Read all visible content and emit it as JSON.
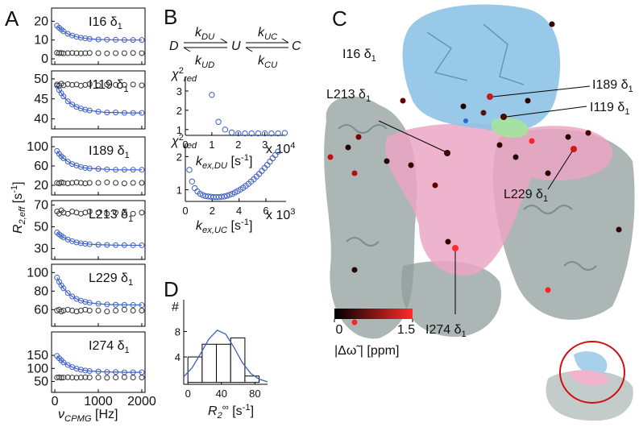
{
  "panel_labels": [
    "A",
    "B",
    "C",
    "D"
  ],
  "panel_a": {
    "ylabel": [
      {
        "t": "R",
        "italic": true
      },
      {
        "t": "2,eff",
        "pos": "sub",
        "italic": true
      },
      {
        "t": " [s"
      },
      {
        "t": "-1",
        "pos": "sup"
      },
      {
        "t": "]"
      }
    ],
    "xlabel": [
      {
        "t": "ν",
        "italic": true
      },
      {
        "t": "CPMG",
        "pos": "sub",
        "italic": true
      },
      {
        "t": " [Hz]"
      }
    ],
    "xticks": [
      0,
      1000,
      2000
    ]
  },
  "scheme": {
    "states": [
      "D",
      "U",
      "C"
    ],
    "rates": [
      [
        {
          "t": "k",
          "italic": true
        },
        {
          "t": "DU",
          "pos": "sub",
          "italic": true
        }
      ],
      [
        {
          "t": "k",
          "italic": true
        },
        {
          "t": "UD",
          "pos": "sub",
          "italic": true
        }
      ],
      [
        {
          "t": "k",
          "italic": true
        },
        {
          "t": "UC",
          "pos": "sub",
          "italic": true
        }
      ],
      [
        {
          "t": "k",
          "italic": true
        },
        {
          "t": "CU",
          "pos": "sub",
          "italic": true
        }
      ]
    ]
  },
  "chart_data": [
    {
      "type": "scatter",
      "label": [
        {
          "t": "I16 δ"
        },
        {
          "t": "1",
          "pos": "sub"
        }
      ],
      "xlim": [
        -75,
        2075
      ],
      "ylim": [
        -3,
        27
      ],
      "yticks": [
        0,
        10,
        20
      ],
      "x": [
        50,
        100,
        150,
        200,
        300,
        400,
        500,
        600,
        700,
        800,
        1000,
        1200,
        1400,
        1600,
        1800,
        2000
      ],
      "series": [
        {
          "color": "#3d5fc4",
          "line": true,
          "values": [
            17.6,
            16.5,
            15.5,
            14.6,
            13.3,
            12.4,
            11.7,
            11.2,
            10.9,
            10.6,
            10.3,
            10.2,
            10.1,
            10.0,
            10.0,
            10.0
          ]
        },
        {
          "color": "#333333",
          "values": [
            3.2,
            3.0,
            3.1,
            2.9,
            3.0,
            3.1,
            3.0,
            2.9,
            3.0,
            3.1,
            3.0,
            2.9,
            3.0,
            3.0,
            3.1,
            3.0
          ]
        }
      ]
    },
    {
      "type": "scatter",
      "label": [
        {
          "t": "I119 δ"
        },
        {
          "t": "1",
          "pos": "sub"
        }
      ],
      "xlim": [
        -75,
        2075
      ],
      "ylim": [
        37.5,
        52
      ],
      "yticks": [
        40,
        45,
        50
      ],
      "x": [
        50,
        100,
        150,
        200,
        300,
        400,
        500,
        600,
        700,
        800,
        1000,
        1200,
        1400,
        1600,
        1800,
        2000
      ],
      "series": [
        {
          "color": "#3d5fc4",
          "line": true,
          "values": [
            48.3,
            47.2,
            46.4,
            45.6,
            44.4,
            43.6,
            43.0,
            42.6,
            42.3,
            42.1,
            41.8,
            41.6,
            41.6,
            41.5,
            41.5,
            41.5
          ]
        },
        {
          "color": "#333333",
          "values": [
            48.6,
            48.3,
            48.8,
            48.4,
            48.7,
            48.5,
            48.6,
            48.3,
            48.5,
            48.7,
            48.4,
            48.6,
            48.5,
            48.5,
            48.6,
            48.4
          ]
        }
      ]
    },
    {
      "type": "scatter",
      "label": [
        {
          "t": "I189 δ"
        },
        {
          "t": "1",
          "pos": "sub"
        }
      ],
      "xlim": [
        -75,
        2075
      ],
      "ylim": [
        0,
        120
      ],
      "yticks": [
        20,
        60,
        100
      ],
      "x": [
        50,
        100,
        150,
        200,
        300,
        400,
        500,
        600,
        700,
        800,
        1000,
        1200,
        1400,
        1600,
        1800,
        2000
      ],
      "series": [
        {
          "color": "#3d5fc4",
          "line": true,
          "values": [
            91,
            85,
            80,
            76,
            69,
            64,
            61,
            58,
            56,
            55,
            54,
            53,
            52,
            52,
            52,
            52
          ]
        },
        {
          "color": "#333333",
          "values": [
            25,
            24,
            26,
            25,
            24,
            25,
            26,
            25,
            24,
            25,
            25,
            26,
            25,
            24,
            25,
            25
          ]
        }
      ]
    },
    {
      "type": "scatter",
      "label": [
        {
          "t": "L213 δ"
        },
        {
          "t": "1",
          "pos": "sub"
        }
      ],
      "xlim": [
        -75,
        2075
      ],
      "ylim": [
        20,
        74
      ],
      "yticks": [
        30,
        50,
        70
      ],
      "x": [
        50,
        100,
        150,
        200,
        300,
        400,
        500,
        600,
        700,
        800,
        1000,
        1200,
        1400,
        1600,
        1800,
        2000
      ],
      "series": [
        {
          "color": "#3d5fc4",
          "line": true,
          "values": [
            44.8,
            43,
            41.5,
            40.2,
            38.2,
            36.7,
            35.6,
            34.9,
            34.4,
            34,
            33.5,
            33.3,
            33.1,
            33.1,
            33,
            33
          ]
        },
        {
          "color": "#333333",
          "values": [
            64,
            62,
            65,
            63,
            62,
            64,
            63,
            62,
            63,
            64,
            63,
            62,
            63,
            63,
            62,
            63
          ]
        }
      ]
    },
    {
      "type": "scatter",
      "label": [
        {
          "t": "L229 δ"
        },
        {
          "t": "1",
          "pos": "sub"
        }
      ],
      "xlim": [
        -75,
        2075
      ],
      "ylim": [
        42,
        109
      ],
      "yticks": [
        60,
        80,
        100
      ],
      "x": [
        50,
        100,
        150,
        200,
        300,
        400,
        500,
        600,
        700,
        800,
        1000,
        1200,
        1400,
        1600,
        1800,
        2000
      ],
      "series": [
        {
          "color": "#3d5fc4",
          "line": true,
          "values": [
            94.6,
            90.1,
            86.2,
            83,
            77.9,
            74.2,
            71.6,
            69.7,
            68.4,
            67.4,
            66.3,
            65.6,
            65.3,
            65.2,
            65.1,
            65
          ]
        },
        {
          "color": "#333333",
          "values": [
            59,
            60,
            58,
            59,
            60,
            59,
            58,
            59,
            60,
            59,
            59,
            58,
            59,
            60,
            59,
            59
          ]
        }
      ]
    },
    {
      "type": "scatter",
      "label": [
        {
          "t": "I274 δ"
        },
        {
          "t": "1",
          "pos": "sub"
        }
      ],
      "xlim": [
        -75,
        2075
      ],
      "ylim": [
        8,
        240
      ],
      "yticks": [
        50,
        100,
        150
      ],
      "x": [
        50,
        100,
        150,
        200,
        300,
        400,
        500,
        600,
        700,
        800,
        1000,
        1200,
        1400,
        1600,
        1800,
        2000
      ],
      "series": [
        {
          "color": "#3d5fc4",
          "line": true,
          "values": [
            148,
            139,
            131,
            123,
            113,
            105,
            99,
            95,
            92,
            90,
            88,
            86,
            86,
            85,
            85,
            85
          ]
        },
        {
          "color": "#333333",
          "values": [
            65,
            66,
            64,
            65,
            66,
            65,
            64,
            65,
            66,
            65,
            65,
            64,
            65,
            66,
            65,
            65
          ]
        }
      ]
    },
    {
      "type": "scatter",
      "ylabel": [
        {
          "t": "χ",
          "italic": true
        },
        {
          "t": "2",
          "pos": "sup"
        },
        {
          "t": "red",
          "pos": "sub",
          "italic": true
        }
      ],
      "xlabel": [
        {
          "t": "k",
          "italic": true
        },
        {
          "t": "ex,DU",
          "pos": "sub",
          "italic": true
        },
        {
          "t": " [s"
        },
        {
          "t": "-1",
          "pos": "sup"
        },
        {
          "t": "]"
        }
      ],
      "xmult": [
        {
          "t": "x 10"
        },
        {
          "t": "4",
          "pos": "sup"
        }
      ],
      "xlim": [
        0,
        3.8
      ],
      "ylim": [
        0.7,
        3.75
      ],
      "xticks": [
        0,
        1,
        2,
        3
      ],
      "yticks": [
        1,
        2,
        3
      ],
      "x": [
        1.0,
        1.25,
        1.5,
        1.75,
        2.0,
        2.25,
        2.5,
        2.75,
        3.0,
        3.25,
        3.5,
        3.75
      ],
      "series": [
        {
          "color": "#3d5fc4",
          "values": [
            2.8,
            1.4,
            1.0,
            0.85,
            0.8,
            0.8,
            0.8,
            0.8,
            0.8,
            0.8,
            0.8,
            0.82
          ]
        }
      ]
    },
    {
      "type": "scatter",
      "ylabel": [
        {
          "t": "χ",
          "italic": true
        },
        {
          "t": "2",
          "pos": "sup"
        },
        {
          "t": "red",
          "pos": "sub",
          "italic": true
        }
      ],
      "xlabel": [
        {
          "t": "k",
          "italic": true
        },
        {
          "t": "ex,UC",
          "pos": "sub",
          "italic": true
        },
        {
          "t": " [s"
        },
        {
          "t": "-1",
          "pos": "sup"
        },
        {
          "t": "]"
        }
      ],
      "xmult": [
        {
          "t": "x 10"
        },
        {
          "t": "3",
          "pos": "sup"
        }
      ],
      "xlim": [
        0,
        7.5
      ],
      "ylim": [
        0.65,
        2.35
      ],
      "xticks": [
        0,
        2,
        4,
        6
      ],
      "yticks": [
        1,
        2
      ],
      "x": [
        0.3,
        0.5,
        0.7,
        0.9,
        1.1,
        1.3,
        1.5,
        1.7,
        1.9,
        2.1,
        2.3,
        2.5,
        2.7,
        2.9,
        3.1,
        3.3,
        3.5,
        3.7,
        3.9,
        4.1,
        4.3,
        4.5,
        4.7,
        4.9,
        5.1,
        5.3,
        5.5,
        5.7,
        5.9,
        6.1,
        6.3,
        6.5,
        6.7,
        6.9
      ],
      "series": [
        {
          "color": "#3d5fc4",
          "values": [
            1.6,
            1.25,
            1.05,
            0.95,
            0.88,
            0.84,
            0.81,
            0.8,
            0.79,
            0.78,
            0.78,
            0.78,
            0.79,
            0.8,
            0.82,
            0.85,
            0.88,
            0.92,
            0.96,
            1.01,
            1.06,
            1.12,
            1.18,
            1.25,
            1.32,
            1.4,
            1.48,
            1.57,
            1.66,
            1.75,
            1.85,
            1.95,
            2.05,
            2.15
          ]
        }
      ]
    },
    {
      "type": "histogram",
      "ylabel": [
        {
          "t": "#"
        }
      ],
      "xlabel": [
        {
          "t": "R",
          "italic": true
        },
        {
          "t": "2",
          "pos": "sub",
          "italic": true
        },
        {
          "t": "∞",
          "pos": "sup"
        },
        {
          "t": " [s"
        },
        {
          "t": "-1",
          "pos": "sup"
        },
        {
          "t": "]"
        }
      ],
      "xlim": [
        -5,
        95
      ],
      "ylim": [
        -0.3,
        13
      ],
      "xticks": [
        0,
        40,
        80
      ],
      "yticks": [
        4,
        8
      ],
      "bins": [
        0,
        17,
        34,
        51,
        68,
        85
      ],
      "counts": [
        4,
        6,
        6,
        7,
        1
      ],
      "color": "#ffffff",
      "fit": {
        "color": "#3d5fc4",
        "x": [
          -5,
          5,
          15,
          25,
          35,
          45,
          55,
          65,
          75,
          85,
          95
        ],
        "values": [
          0.9,
          2.3,
          4.5,
          6.8,
          8.2,
          7.6,
          5.5,
          3.1,
          1.4,
          0.5,
          0.1
        ]
      }
    }
  ],
  "structure": {
    "labels": [
      [
        {
          "t": "I16 δ"
        },
        {
          "t": "1",
          "pos": "sub"
        }
      ],
      [
        {
          "t": "I189 δ"
        },
        {
          "t": "1",
          "pos": "sub"
        }
      ],
      [
        {
          "t": "L213 δ"
        },
        {
          "t": "1",
          "pos": "sub"
        }
      ],
      [
        {
          "t": "I119 δ"
        },
        {
          "t": "1",
          "pos": "sub"
        }
      ],
      [
        {
          "t": "L229 δ"
        },
        {
          "t": "1",
          "pos": "sub"
        }
      ],
      [
        {
          "t": "I274 δ"
        },
        {
          "t": "1",
          "pos": "sub"
        }
      ]
    ]
  },
  "colorbar": {
    "ticks": [
      0,
      1.5
    ],
    "lim": [
      0,
      1.5
    ],
    "colors": [
      "#000000",
      "#ff2a2a"
    ],
    "label": [
      {
        "t": "|Δω̃ | [ppm]"
      }
    ]
  }
}
